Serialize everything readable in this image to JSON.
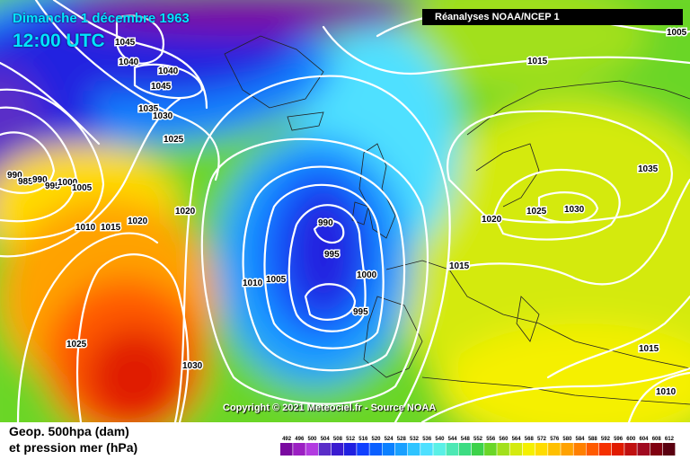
{
  "title": {
    "date": "Dimanche 1 décembre 1963",
    "time": "12:00 UTC"
  },
  "source_banner": "Réanalyses NOAA/NCEP 1",
  "copyright": "Copyright © 2021 Meteociel.fr - Source NOAA",
  "legend": {
    "line1": "Geop. 500hpa (dam)",
    "line2": "et pression mer (hPa)"
  },
  "color_scale": {
    "unit": "dam",
    "ticks": [
      "492",
      "496",
      "500",
      "504",
      "508",
      "512",
      "516",
      "520",
      "524",
      "528",
      "532",
      "536",
      "540",
      "544",
      "548",
      "552",
      "556",
      "560",
      "564",
      "568",
      "572",
      "576",
      "580",
      "584",
      "588",
      "592",
      "596",
      "600",
      "604",
      "608",
      "612"
    ],
    "colors": [
      "#7a0aa0",
      "#9b1fc2",
      "#b23be0",
      "#5a2dc8",
      "#3a1bd0",
      "#2020e0",
      "#1040ff",
      "#0a5fff",
      "#0b80ff",
      "#1aa0ff",
      "#2fc4ff",
      "#4fe0ff",
      "#5af0e6",
      "#4de8b4",
      "#3cdc82",
      "#3dd24a",
      "#6ad628",
      "#a2e01c",
      "#d4ea10",
      "#f5f000",
      "#ffdc00",
      "#ffc000",
      "#ffa200",
      "#ff8000",
      "#ff5a00",
      "#f53000",
      "#e01a00",
      "#c01010",
      "#a00a20",
      "#800010",
      "#5a0010"
    ]
  },
  "isobar_labels": [
    {
      "text": "1045",
      "left": false
    },
    {
      "text": "1040",
      "left": false
    },
    {
      "text": "1040",
      "left": false
    },
    {
      "text": "1045",
      "left": false
    },
    {
      "text": "1035",
      "left": false
    },
    {
      "text": "1030",
      "left": false
    },
    {
      "text": "1025",
      "left": false
    },
    {
      "text": "990",
      "left": false
    },
    {
      "text": "985",
      "left": false
    },
    {
      "text": "990",
      "left": false
    },
    {
      "text": "995",
      "left": false
    },
    {
      "text": "1000",
      "left": false
    },
    {
      "text": "1005",
      "left": false
    },
    {
      "text": "1010",
      "left": false
    },
    {
      "text": "1015",
      "left": false
    },
    {
      "text": "1020",
      "left": false
    },
    {
      "text": "1020",
      "left": false
    },
    {
      "text": "990",
      "left": false
    },
    {
      "text": "995",
      "left": false
    },
    {
      "text": "1000",
      "left": false
    },
    {
      "text": "1005",
      "left": false
    },
    {
      "text": "1010",
      "left": false
    },
    {
      "text": "995",
      "left": false
    },
    {
      "text": "1025",
      "left": false
    },
    {
      "text": "1030",
      "left": false
    },
    {
      "text": "1015",
      "left": false
    },
    {
      "text": "1005",
      "left": false
    },
    {
      "text": "1015",
      "left": false
    },
    {
      "text": "1020",
      "left": false
    },
    {
      "text": "1025",
      "left": false
    },
    {
      "text": "1030",
      "left": false
    },
    {
      "text": "1035",
      "left": false
    },
    {
      "text": "1015",
      "left": false
    },
    {
      "text": "1010",
      "left": false
    }
  ]
}
